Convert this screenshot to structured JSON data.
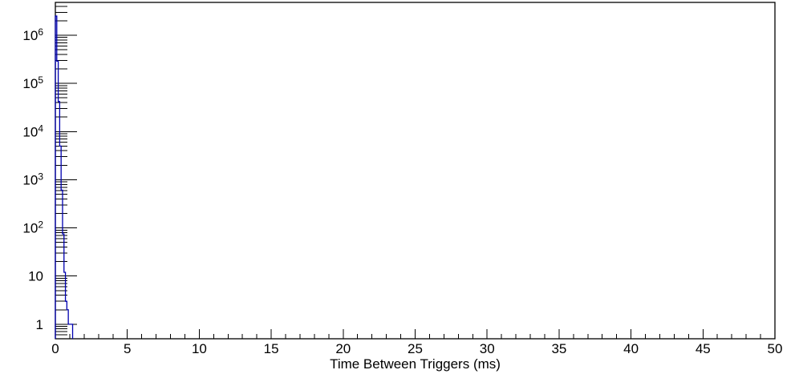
{
  "chart_data": {
    "type": "bar",
    "subtype": "step-histogram-outline",
    "title": "",
    "xlabel": "Time Between Triggers (ms)",
    "ylabel": "",
    "xlim": [
      0,
      50
    ],
    "ylim": [
      0.5,
      4800000
    ],
    "yscale": "log",
    "grid": false,
    "legend_visible": false,
    "bin_width_ms": 0.1,
    "bins": [
      {
        "x0": 0.0,
        "x1": 0.1,
        "count": 2500000
      },
      {
        "x0": 0.1,
        "x1": 0.2,
        "count": 290000
      },
      {
        "x0": 0.2,
        "x1": 0.3,
        "count": 42000
      },
      {
        "x0": 0.3,
        "x1": 0.4,
        "count": 5000
      },
      {
        "x0": 0.4,
        "x1": 0.5,
        "count": 610
      },
      {
        "x0": 0.5,
        "x1": 0.6,
        "count": 75
      },
      {
        "x0": 0.6,
        "x1": 0.7,
        "count": 12
      },
      {
        "x0": 0.7,
        "x1": 0.8,
        "count": 3
      },
      {
        "x0": 0.8,
        "x1": 0.9,
        "count": 2
      },
      {
        "x0": 0.9,
        "x1": 1.0,
        "count": 1
      },
      {
        "x0": 1.0,
        "x1": 1.1,
        "count": 1
      },
      {
        "x0": 1.1,
        "x1": 1.2,
        "count": 1
      }
    ],
    "x_major_ticks": [
      0,
      5,
      10,
      15,
      20,
      25,
      30,
      35,
      40,
      45,
      50
    ],
    "x_minor_tick_step": 1,
    "y_decade_labels": [
      {
        "value": 1,
        "base": "1",
        "sup": ""
      },
      {
        "value": 10,
        "base": "10",
        "sup": ""
      },
      {
        "value": 100,
        "base": "10",
        "sup": "2"
      },
      {
        "value": 1000,
        "base": "10",
        "sup": "3"
      },
      {
        "value": 10000,
        "base": "10",
        "sup": "4"
      },
      {
        "value": 100000,
        "base": "10",
        "sup": "5"
      },
      {
        "value": 1000000,
        "base": "10",
        "sup": "6"
      }
    ],
    "colors": {
      "histogram_line": "#0000b0",
      "axis": "#000000",
      "background": "#ffffff"
    }
  }
}
